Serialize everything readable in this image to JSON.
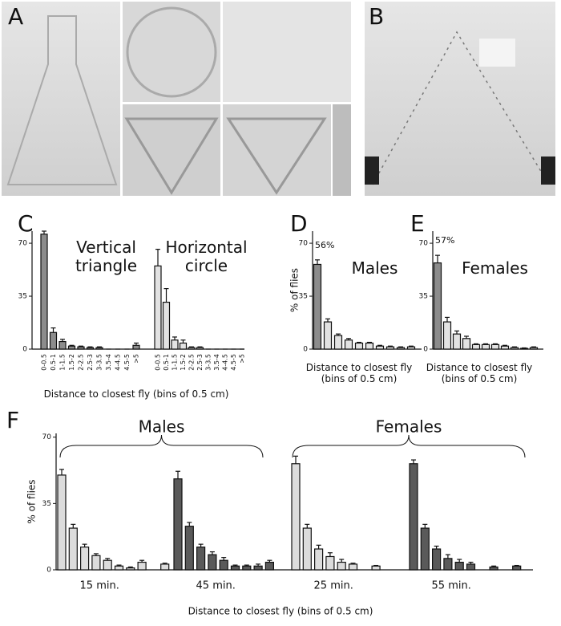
{
  "panels": [
    "A",
    "B"
  ],
  "chart_data": [
    {
      "type": "bar",
      "panel": "C",
      "categories": [
        "0-0.5",
        "0.5-1",
        "1-1.5",
        "1.5-2",
        "2-2.5",
        "2.5-3",
        "3-3.5",
        "3.5-4",
        "4-4.5",
        "4.5-5",
        ">5"
      ],
      "series": [
        {
          "name": "Vertical triangle",
          "color": "#8c8c8c",
          "values": [
            76,
            11,
            5,
            2,
            1.5,
            1,
            1,
            0,
            0,
            0,
            2.5
          ],
          "errors": [
            2,
            3,
            1.5,
            0.5,
            0.5,
            0.5,
            0.5,
            0,
            0,
            0,
            1.5
          ]
        },
        {
          "name": "Horizontal circle",
          "color": "#e2e2e2",
          "values": [
            55,
            31,
            6,
            4,
            1,
            1,
            0,
            0,
            0,
            0,
            0
          ],
          "errors": [
            11,
            9,
            2,
            2,
            0.5,
            0.5,
            0,
            0,
            0,
            0,
            0
          ]
        }
      ],
      "ylim": [
        0,
        78
      ],
      "yticks": [
        0,
        35,
        70
      ],
      "xlabel": "Distance to closest fly (bins of 0.5 cm)"
    },
    {
      "type": "bar",
      "panel": "D",
      "title": "Males",
      "annotation": "56%",
      "color": "#e2e2e2",
      "highlight_color": "#8c8c8c",
      "values": [
        56,
        18,
        9,
        6,
        4,
        4,
        2,
        1.5,
        1,
        1.5
      ],
      "errors": [
        3,
        2,
        1,
        1,
        0.5,
        0.5,
        0.5,
        0.5,
        0.5,
        0.5
      ],
      "ylim": [
        0,
        78
      ],
      "yticks": [
        0,
        35,
        70
      ],
      "ylabel": "% of flies",
      "xlabel": "Distance to closest fly (bins of 0.5 cm)"
    },
    {
      "type": "bar",
      "panel": "E",
      "title": "Females",
      "annotation": "57%",
      "color": "#e2e2e2",
      "highlight_color": "#8c8c8c",
      "values": [
        57,
        18,
        10,
        7,
        3,
        3,
        3,
        2,
        1,
        0.5,
        1
      ],
      "errors": [
        5,
        3,
        2,
        1.5,
        0.5,
        0.5,
        0.5,
        0.5,
        0.5,
        0.3,
        0.5
      ],
      "ylim": [
        0,
        78
      ],
      "yticks": [
        0,
        35,
        70
      ],
      "xlabel": "Distance to closest fly (bins of 0.5 cm)"
    },
    {
      "type": "grouped-bar",
      "panel": "F",
      "annotations": [
        "Males",
        "Females"
      ],
      "series": [
        {
          "name": "15 min.",
          "color": "#dcdcdc",
          "values": [
            50,
            22,
            12,
            7.5,
            5,
            2,
            1,
            4,
            null,
            3
          ],
          "errors": [
            3,
            2,
            1.5,
            1,
            1,
            0.5,
            0.5,
            1,
            null,
            0.5
          ]
        },
        {
          "name": "45 min.",
          "color": "#5a5a5a",
          "values": [
            48,
            23,
            12,
            8,
            5,
            2,
            2,
            2,
            4
          ],
          "errors": [
            4,
            2,
            1.5,
            1.5,
            1.5,
            0.5,
            0.5,
            1,
            1
          ]
        },
        {
          "name": "25 min.",
          "color": "#dcdcdc",
          "values": [
            56,
            22,
            11,
            7,
            4,
            3,
            null,
            2
          ],
          "errors": [
            4,
            2,
            2,
            2,
            1.5,
            0.5,
            null,
            0.3
          ]
        },
        {
          "name": "55 min.",
          "color": "#5a5a5a",
          "values": [
            56,
            22,
            11,
            6,
            4,
            3,
            null,
            1.5,
            null,
            2
          ],
          "errors": [
            2,
            2,
            1.5,
            2,
            1.5,
            1,
            null,
            0.5,
            null,
            0.3
          ]
        }
      ],
      "ylim": [
        0,
        72
      ],
      "yticks": [
        0,
        35,
        70
      ],
      "ylabel": "% of flies",
      "xlabel": "Distance to closest fly (bins of 0.5 cm)"
    }
  ]
}
